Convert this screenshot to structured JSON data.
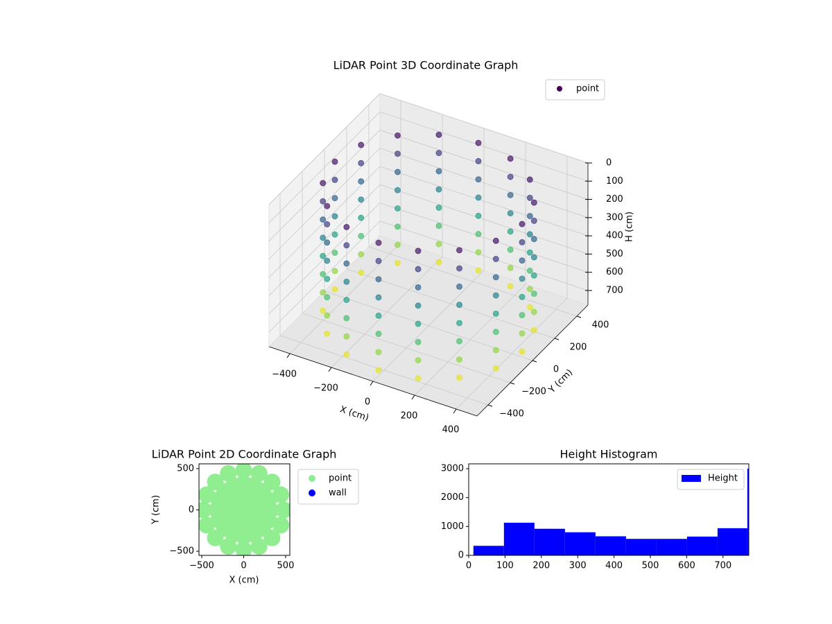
{
  "chart_data": [
    {
      "type": "scatter3d",
      "title": "LiDAR Point 3D Coordinate Graph",
      "xlabel": "X (cm)",
      "ylabel": "Y (cm)",
      "zlabel": "H (cm)",
      "xlim": [
        -500,
        500
      ],
      "ylim": [
        -500,
        500
      ],
      "zlim": [
        0,
        780
      ],
      "z_inverted": true,
      "xticks": [
        {
          "value": -400,
          "label": "−400"
        },
        {
          "value": -200,
          "label": "−200"
        },
        0,
        200,
        400
      ],
      "yticks": [
        {
          "value": -400,
          "label": "−400"
        },
        {
          "value": -200,
          "label": "−200"
        },
        0,
        200,
        400
      ],
      "zticks": [
        0,
        100,
        200,
        300,
        400,
        500,
        600,
        700
      ],
      "cmap": "viridis",
      "grid": true,
      "legend": "upper right",
      "legend_color": "#440154",
      "series_name": "point",
      "x": [
        450,
        416,
        318,
        172,
        0,
        -172,
        -318,
        -416,
        -450,
        -416,
        -318,
        -172,
        0,
        172,
        318,
        416,
        450,
        416,
        318,
        172,
        0,
        -172,
        -318,
        -416,
        -450,
        -416,
        -318,
        -172,
        0,
        172,
        318,
        416,
        450,
        416,
        318,
        172,
        0,
        -172,
        -318,
        -416,
        -450,
        -416,
        -318,
        -172,
        0,
        172,
        318,
        416,
        450,
        416,
        318,
        172,
        0,
        -172,
        -318,
        -416,
        -450,
        -416,
        -318,
        -172,
        0,
        172,
        318,
        416,
        450,
        416,
        318,
        172,
        0,
        -172,
        -318,
        -416,
        -450,
        -416,
        -318,
        -172,
        0,
        172,
        318,
        416,
        450,
        416,
        318,
        172,
        0,
        -172,
        -318,
        -416,
        -450,
        -416,
        -318,
        -172,
        0,
        172,
        318,
        416,
        450,
        416,
        318,
        172,
        0,
        -172,
        -318,
        -416,
        -450,
        -416,
        -318,
        -172,
        0,
        172,
        318,
        416,
        450,
        416,
        318,
        172,
        0,
        -172,
        -318,
        -416,
        -450,
        -416,
        -318,
        -172,
        0,
        172,
        318,
        416
      ],
      "y": [
        0,
        172,
        318,
        416,
        450,
        416,
        318,
        172,
        0,
        -172,
        -318,
        -416,
        -450,
        -416,
        -318,
        -172,
        0,
        172,
        318,
        416,
        450,
        416,
        318,
        172,
        0,
        -172,
        -318,
        -416,
        -450,
        -416,
        -318,
        -172,
        0,
        172,
        318,
        416,
        450,
        416,
        318,
        172,
        0,
        -172,
        -318,
        -416,
        -450,
        -416,
        -318,
        -172,
        0,
        172,
        318,
        416,
        450,
        416,
        318,
        172,
        0,
        -172,
        -318,
        -416,
        -450,
        -416,
        -318,
        -172,
        0,
        172,
        318,
        416,
        450,
        416,
        318,
        172,
        0,
        -172,
        -318,
        -416,
        -450,
        -416,
        -318,
        -172,
        0,
        172,
        318,
        416,
        450,
        416,
        318,
        172,
        0,
        -172,
        -318,
        -416,
        -450,
        -416,
        -318,
        -172,
        0,
        172,
        318,
        416,
        450,
        416,
        318,
        172,
        0,
        -172,
        -318,
        -416,
        -450,
        -416,
        -318,
        -172,
        0,
        172,
        318,
        416,
        450,
        416,
        318,
        172,
        0,
        -172,
        -318,
        -416,
        -450,
        -416,
        -318,
        -172
      ],
      "z": [
        50,
        50,
        50,
        50,
        50,
        50,
        50,
        50,
        50,
        50,
        50,
        50,
        50,
        50,
        50,
        50,
        150,
        150,
        150,
        150,
        150,
        150,
        150,
        150,
        150,
        150,
        150,
        150,
        150,
        150,
        150,
        150,
        250,
        250,
        250,
        250,
        250,
        250,
        250,
        250,
        250,
        250,
        250,
        250,
        250,
        250,
        250,
        250,
        350,
        350,
        350,
        350,
        350,
        350,
        350,
        350,
        350,
        350,
        350,
        350,
        350,
        350,
        350,
        350,
        450,
        450,
        450,
        450,
        450,
        450,
        450,
        450,
        450,
        450,
        450,
        450,
        450,
        450,
        450,
        450,
        550,
        550,
        550,
        550,
        550,
        550,
        550,
        550,
        550,
        550,
        550,
        550,
        550,
        550,
        550,
        550,
        650,
        650,
        650,
        650,
        650,
        650,
        650,
        650,
        650,
        650,
        650,
        650,
        650,
        650,
        650,
        650,
        750,
        750,
        750,
        750,
        750,
        750,
        750,
        750,
        750,
        750,
        750,
        750,
        750,
        750,
        750,
        750
      ]
    },
    {
      "type": "scatter",
      "title": "LiDAR Point 2D Coordinate Graph",
      "xlabel": "X (cm)",
      "ylabel": "Y (cm)",
      "xlim": [
        -533,
        550
      ],
      "ylim": [
        -550,
        558
      ],
      "xticks": [
        {
          "value": -500,
          "label": "−500"
        },
        0,
        500
      ],
      "yticks": [
        {
          "value": -500,
          "label": "−500"
        },
        0,
        500
      ],
      "legend": "outside right",
      "series": [
        {
          "name": "point",
          "color": "#90ee90",
          "x": [
            480,
            443,
            339,
            184,
            0,
            -184,
            -339,
            -443,
            -480,
            -443,
            -339,
            -184,
            0,
            184,
            339,
            443,
            320,
            296,
            226,
            122,
            0,
            -122,
            -226,
            -296,
            -320,
            -296,
            -226,
            -122,
            0,
            122,
            226,
            296,
            160,
            113,
            0,
            -113,
            -160,
            -113,
            0,
            113,
            0
          ],
          "y": [
            0,
            184,
            339,
            443,
            480,
            443,
            339,
            184,
            0,
            -184,
            -339,
            -443,
            -480,
            -443,
            -339,
            -184,
            0,
            122,
            226,
            296,
            320,
            296,
            226,
            122,
            0,
            -122,
            -226,
            -296,
            -320,
            -296,
            -226,
            -122,
            0,
            113,
            160,
            113,
            0,
            -113,
            -160,
            -113,
            0
          ]
        },
        {
          "name": "wall",
          "color": "#0000ff",
          "x": [],
          "y": []
        }
      ]
    },
    {
      "type": "histogram",
      "title": "Height Histogram",
      "series_name": "Height",
      "color": "#0000ff",
      "legend": "upper right",
      "bins": [
        13,
        97,
        181,
        265,
        349,
        433,
        517,
        601,
        685,
        767,
        771
      ],
      "counts": [
        330,
        1130,
        920,
        800,
        660,
        570,
        570,
        650,
        940,
        3000
      ],
      "xlim": [
        0,
        771
      ],
      "ylim": [
        0,
        3168
      ],
      "xticks": [
        0,
        100,
        200,
        300,
        400,
        500,
        600,
        700
      ],
      "yticks": [
        0,
        1000,
        2000,
        3000
      ]
    }
  ]
}
